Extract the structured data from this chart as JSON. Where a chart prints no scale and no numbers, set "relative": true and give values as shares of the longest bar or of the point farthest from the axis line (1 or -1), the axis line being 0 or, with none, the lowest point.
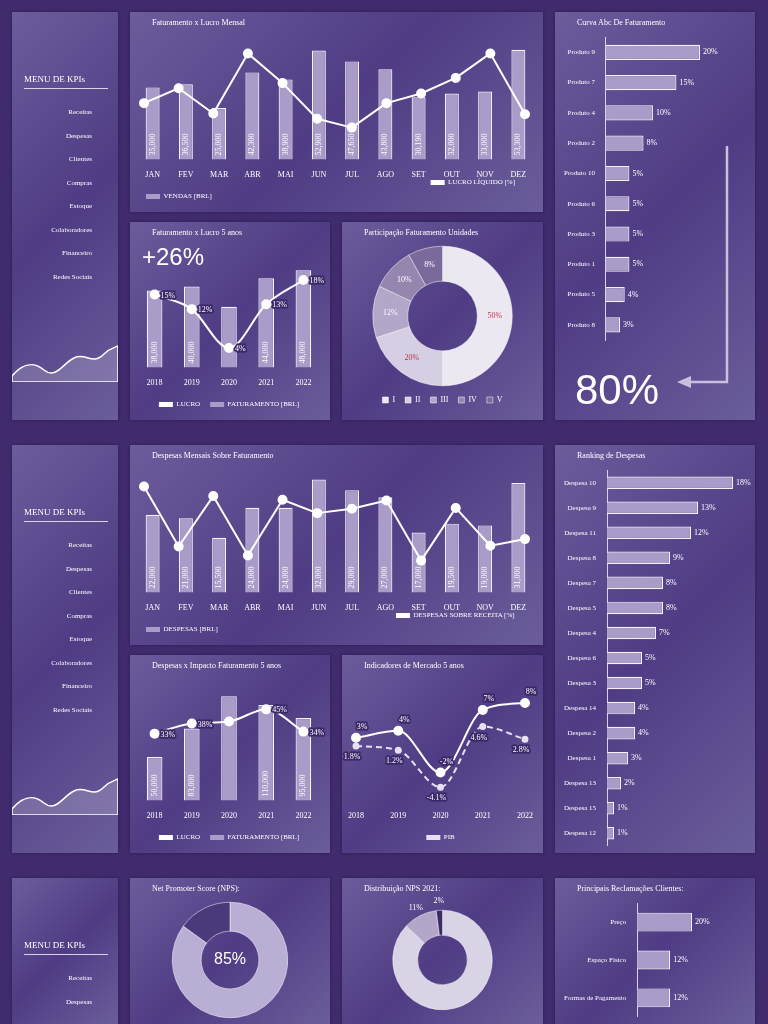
{
  "chart_data": [
    {
      "type": "other",
      "title": "MENU DE KPIs",
      "annotations": [
        "Receitas",
        "Despesas",
        "Clientes",
        "Compras",
        "Estoque",
        "Colaboradores",
        "Financeiro",
        "Redes Sociais"
      ]
    },
    {
      "type": "bar",
      "title": "Faturamento x Lucro Mensal",
      "categories": [
        "JAN",
        "FEV",
        "MAR",
        "ABR",
        "MAI",
        "JUN",
        "JUL",
        "AGO",
        "SET",
        "OUT",
        "NOV",
        "DEZ"
      ],
      "legend": "bottom left",
      "tick_labels": "x",
      "series": [
        {
          "name": "VENDAS [BRL]",
          "color": "#a99cc8",
          "values": [
            35000,
            36500,
            25000,
            42300,
            38900,
            52900,
            47650,
            43800,
            30190,
            32000,
            33000,
            53300
          ],
          "value_labels": [
            "35,000",
            "36,500",
            "25,000",
            "42,300",
            "38,900",
            "52,900",
            "47,650",
            "43,800",
            "30,190",
            "32,000",
            "33,000",
            "53,300"
          ]
        }
      ]
    },
    {
      "type": "line",
      "relative": true,
      "categories": [
        null,
        null,
        null,
        null,
        null,
        null,
        null,
        null,
        null,
        null,
        null,
        null
      ],
      "legend": "bottom right",
      "tick_labels": false,
      "series": [
        {
          "name": "LUCRO LÍQUIDO [%]",
          "marker": "circle",
          "color": "#ffffff",
          "values": [
            0.33,
            0.53,
            0.19,
            1,
            0.6,
            0.12,
            0,
            0.33,
            0.46,
            0.67,
            1,
            0.18
          ]
        }
      ]
    },
    {
      "type": "bar",
      "orientation": "horizontal",
      "title": "Curva Abc De Faturamento",
      "tick_labels": "y",
      "categories": [
        "Produto 9",
        "Produto 7",
        "Produto 4",
        "Produto 2",
        "Produto 10",
        "Produto 6",
        "Produto 3",
        "Produto 1",
        "Produto 5",
        "Produto 8"
      ],
      "color": "#a99cc8",
      "values": [
        20,
        15,
        10,
        8,
        5,
        5,
        5,
        5,
        4,
        3
      ],
      "value_labels": [
        "20%",
        "15%",
        "10%",
        "8%",
        "5%",
        "5%",
        "5%",
        "5%",
        "4%",
        "3%"
      ],
      "annotations": [
        "80%"
      ]
    },
    {
      "type": "bar",
      "title": "Faturamento x Lucro 5 anos",
      "categories": [
        "2018",
        "2019",
        "2020",
        "2021",
        "2022"
      ],
      "legend": "bottom",
      "tick_labels": "x",
      "annotations": [
        "+26%"
      ],
      "series": [
        {
          "name": "FATURAMENTO [BRL]",
          "type": "bar",
          "color": "#a99cc8",
          "values": [
            38000,
            40000,
            30000,
            44000,
            48000
          ],
          "value_labels": [
            "38,000",
            "40,000",
            null,
            "44,000",
            "48,000"
          ]
        },
        {
          "name": "LUCRO",
          "type": "line",
          "axis": "y2",
          "marker": "circle",
          "color": "#ffffff",
          "values": [
            15,
            12,
            4,
            13,
            18
          ],
          "value_labels": [
            "15%",
            "12%",
            "4%",
            "13%",
            "18%"
          ]
        }
      ]
    },
    {
      "type": "donut",
      "title": "Participação Faturamento Unidades",
      "legend": "bottom",
      "categories": [
        "I",
        "II",
        "III",
        "IV",
        "V"
      ],
      "values": [
        50,
        20,
        12,
        10,
        8
      ],
      "colors": [
        "#ece8f2",
        "#d6cfe3",
        "#b2a6c9",
        "#9586b0",
        "#7a6a9c"
      ],
      "value_labels": [
        "50%",
        "20%",
        "12%",
        "10%",
        "8%"
      ]
    },
    {
      "type": "other",
      "title": "MENU DE KPIs",
      "annotations": [
        "Receitas",
        "Despesas",
        "Clientes",
        "Compras",
        "Estoque",
        "Colaboradores",
        "Financeiro",
        "Redes Sociais"
      ]
    },
    {
      "type": "bar",
      "title": "Despesas Mensais Sobre Faturamento",
      "categories": [
        "JAN",
        "FEV",
        "MAR",
        "ABR",
        "MAI",
        "JUN",
        "JUL",
        "AGO",
        "SET",
        "OUT",
        "NOV",
        "DEZ"
      ],
      "legend": "bottom left",
      "tick_labels": "x",
      "series": [
        {
          "name": "DESPESAS [BRL]",
          "color": "#a99cc8",
          "values": [
            22000,
            21000,
            15500,
            24000,
            24000,
            32000,
            29000,
            27000,
            17000,
            19500,
            19000,
            31000
          ],
          "value_labels": [
            "22,000",
            "21,000",
            "15,500",
            "24,000",
            "24,000",
            "32,000",
            "29,000",
            "27,000",
            "17,000",
            "19,500",
            "19,000",
            "31,000"
          ]
        }
      ]
    },
    {
      "type": "line",
      "relative": true,
      "categories": [
        null,
        null,
        null,
        null,
        null,
        null,
        null,
        null,
        null,
        null,
        null,
        null
      ],
      "legend": "bottom right",
      "tick_labels": false,
      "series": [
        {
          "name": "DESPESAS SOBRE RECEITA [%]",
          "marker": "circle",
          "color": "#ffffff",
          "values": [
            1,
            0.19,
            0.87,
            0.07,
            0.82,
            0.64,
            0.7,
            0.81,
            0,
            0.71,
            0.2,
            0.29
          ]
        }
      ]
    },
    {
      "type": "bar",
      "orientation": "horizontal",
      "title": "Ranking de Despesas",
      "tick_labels": "y",
      "categories": [
        "Despesa 10",
        "Despesa 9",
        "Despesa 11",
        "Despesa 8",
        "Despesa 7",
        "Despesa 5",
        "Despesa 4",
        "Despesa 6",
        "Despesa 3",
        "Despesa 14",
        "Despesa 2",
        "Despesa 1",
        "Despesa 13",
        "Despesa 15",
        "Despesa 12"
      ],
      "color": "#a99cc8",
      "values": [
        18,
        13,
        12,
        9,
        8,
        8,
        7,
        5,
        5,
        4,
        4,
        3,
        2,
        1,
        1
      ],
      "value_labels": [
        "18%",
        "13%",
        "12%",
        "9%",
        "8%",
        "8%",
        "7%",
        "5%",
        "5%",
        "4%",
        "4%",
        "3%",
        "2%",
        "1%",
        "1%"
      ]
    },
    {
      "type": "bar",
      "title": "Despesas x Impacto Faturamento 5 anos",
      "categories": [
        "2018",
        "2019",
        "2020",
        "2021",
        "2022"
      ],
      "legend": "bottom",
      "tick_labels": "x",
      "series": [
        {
          "name": "FATURAMENTO [BRL]",
          "type": "bar",
          "color": "#a99cc8",
          "values": [
            50000,
            83000,
            120000,
            110000,
            95000
          ],
          "value_labels": [
            "50,000",
            "83,000",
            null,
            "110,000",
            "95,000"
          ]
        },
        {
          "name": "LUCRO",
          "type": "line",
          "axis": "y2",
          "marker": "circle",
          "color": "#ffffff",
          "values": [
            33,
            38,
            39,
            45,
            34
          ],
          "value_labels": [
            "33%",
            "38%",
            null,
            "45%",
            "34%"
          ]
        }
      ]
    },
    {
      "type": "line",
      "title": "Indicadores de Mercado 5 anos",
      "categories": [
        "2018",
        "2019",
        "2020",
        "2021",
        "2022"
      ],
      "legend": "bottom",
      "tick_labels": "x",
      "series": [
        {
          "color": "#ffffff",
          "marker": "circle",
          "values": [
            3,
            4,
            -2,
            7,
            8
          ],
          "value_labels": [
            "3%",
            "4%",
            "-2%",
            "7%",
            "8%"
          ]
        },
        {
          "name": "PIB",
          "color": "#e6e1f0",
          "marker": "circle",
          "line_style": "dashed",
          "values": [
            1.8,
            1.2,
            -4.1,
            4.6,
            2.8
          ],
          "value_labels": [
            "1.8%",
            "1.2%",
            "-4.1%",
            "4.6%",
            "2.8%"
          ]
        }
      ]
    },
    {
      "type": "other",
      "title": "MENU DE KPIs",
      "annotations": [
        "Receitas",
        "Despesas"
      ]
    },
    {
      "type": "donut",
      "title": "Net Promoter Score (NPS):",
      "categories": [
        null,
        null
      ],
      "values": [
        85,
        15
      ],
      "colors": [
        "#b9aed3",
        "#4a3a7c"
      ],
      "annotations": [
        "85%"
      ]
    },
    {
      "type": "donut",
      "title": "Distribuição NPS 2021:",
      "categories": [
        null,
        null,
        null
      ],
      "values": [
        87,
        11,
        2
      ],
      "colors": [
        "#d9d3e6",
        "#b2a7c9",
        "#3c2c66"
      ],
      "value_labels": [
        null,
        "11%",
        "2%"
      ]
    },
    {
      "type": "bar",
      "orientation": "horizontal",
      "title": "Principais Reclamações Clientes:",
      "tick_labels": "y",
      "categories": [
        "Preço",
        "Espaço Físico",
        "Formas de Pagamento"
      ],
      "color": "#a99cc8",
      "values": [
        20,
        12,
        12
      ],
      "value_labels": [
        "20%",
        "12%",
        "12%"
      ]
    }
  ]
}
